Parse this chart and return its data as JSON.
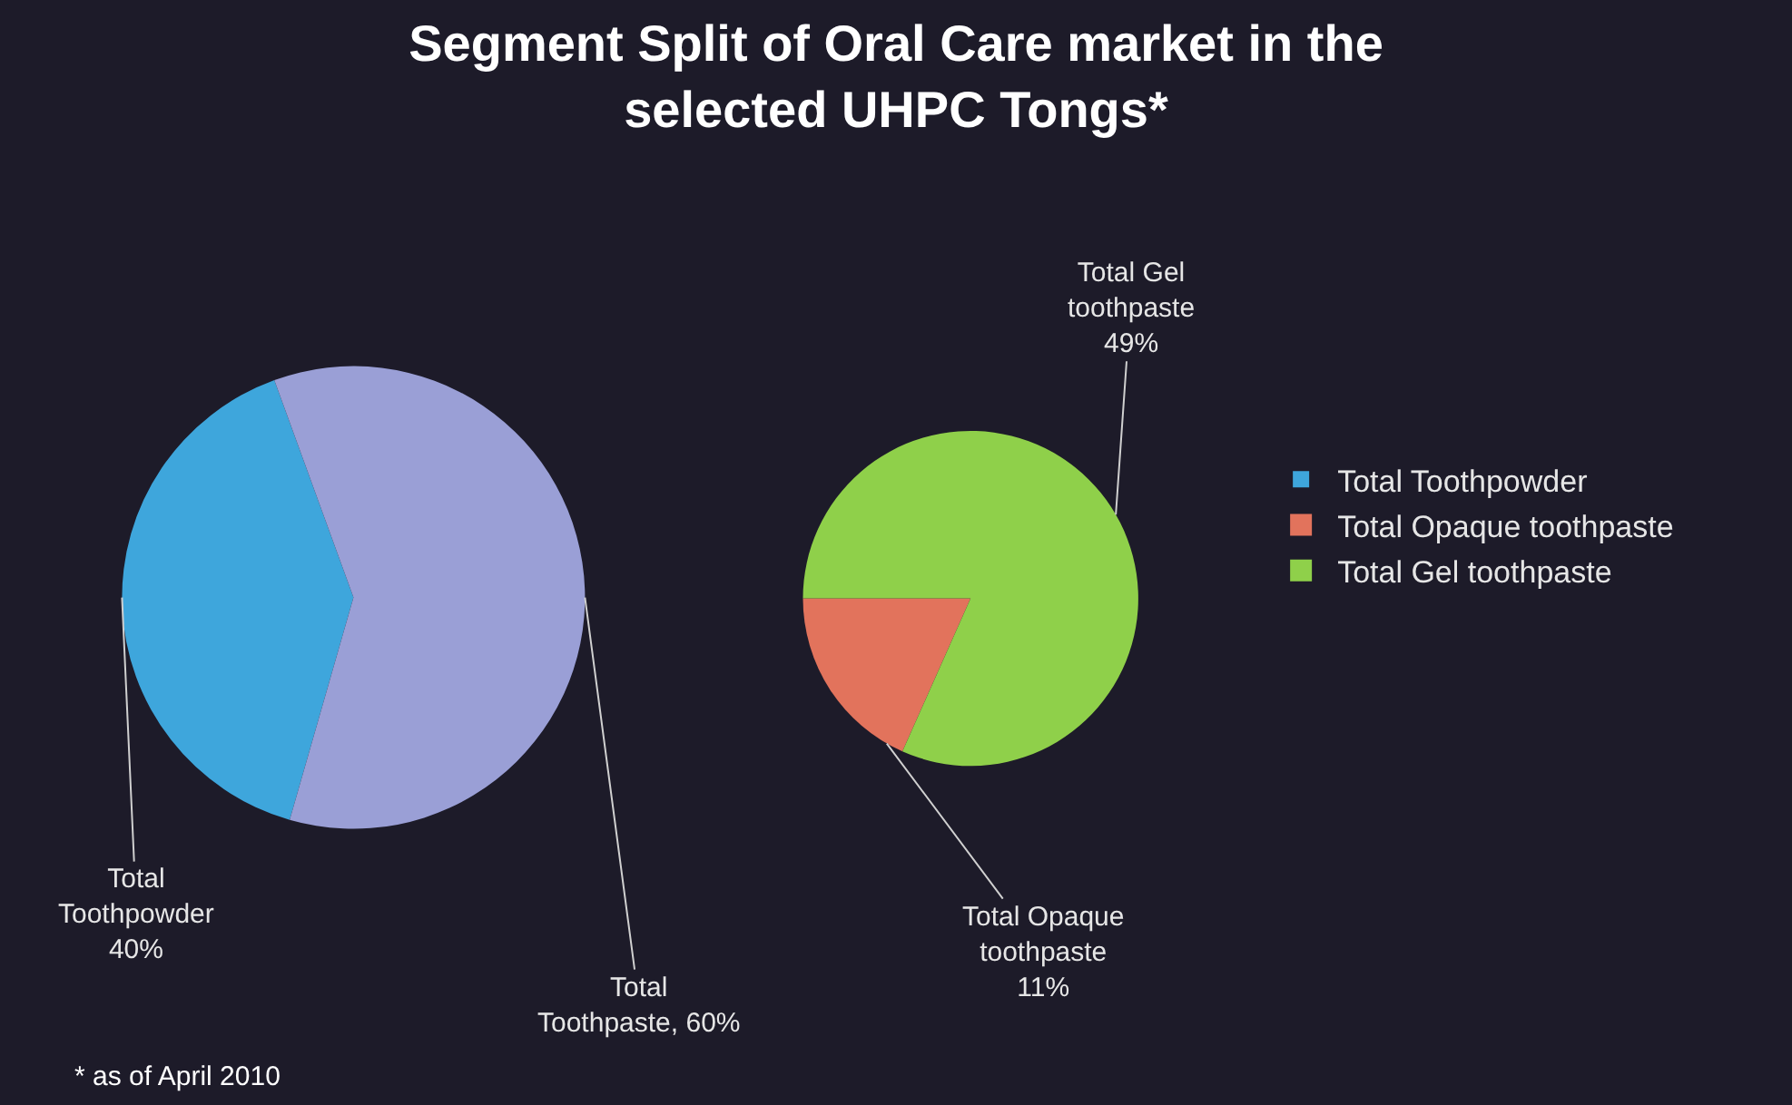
{
  "chart_data": [
    {
      "type": "pie",
      "title": "Segment Split of Oral Care market in the\nselected UHPC Tongs*",
      "categories": [
        "Total Toothpowder",
        null
      ],
      "values": [
        40,
        60
      ],
      "colors": [
        "#3ea6dc",
        "#9a9fd6"
      ],
      "value_labels": [
        "Total\nToothpowder\n40%",
        "Total\nToothpaste, 60%"
      ],
      "annotations": [
        "* as of April 2010"
      ],
      "legend": "right"
    },
    {
      "type": "pie",
      "categories": [
        "Total Opaque toothpaste",
        "Total Gel toothpaste"
      ],
      "values": [
        11,
        49
      ],
      "colors": [
        "#e2735c",
        "#8fd04a"
      ],
      "value_labels": [
        "Total Opaque\ntoothpaste\n11%",
        "Total Gel\ntoothpaste\n49%"
      ],
      "legend": "right"
    }
  ]
}
